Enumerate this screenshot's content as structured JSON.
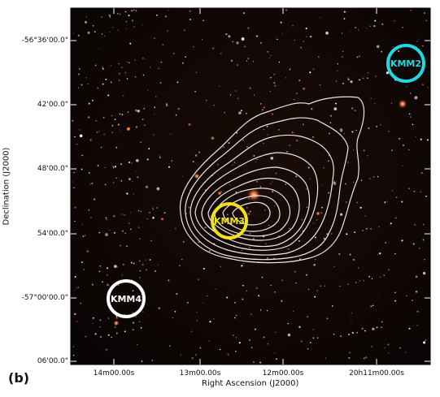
{
  "panel_label": "(b)",
  "axes": {
    "xlabel": "Right Ascension (J2000)",
    "ylabel": "Declination (J2000)",
    "x_ticks": [
      "14m00.00s",
      "13m00.00s",
      "12m00.00s",
      "20h11m00.00s"
    ],
    "y_ticks": [
      "-56°36'00.0\"",
      "42'00.0\"",
      "48'00.0\"",
      "54'00.0\"",
      "-57°00'00.0\"",
      "06'00.0\""
    ]
  },
  "markers": [
    {
      "label": "KMM2",
      "color": "#22d8e0"
    },
    {
      "label": "KMM3",
      "color": "#f2e21a"
    },
    {
      "label": "KMM4",
      "color": "#ffffff"
    }
  ],
  "colors": {
    "image_background": "#0b0606",
    "contour": "#e8e8e8"
  }
}
